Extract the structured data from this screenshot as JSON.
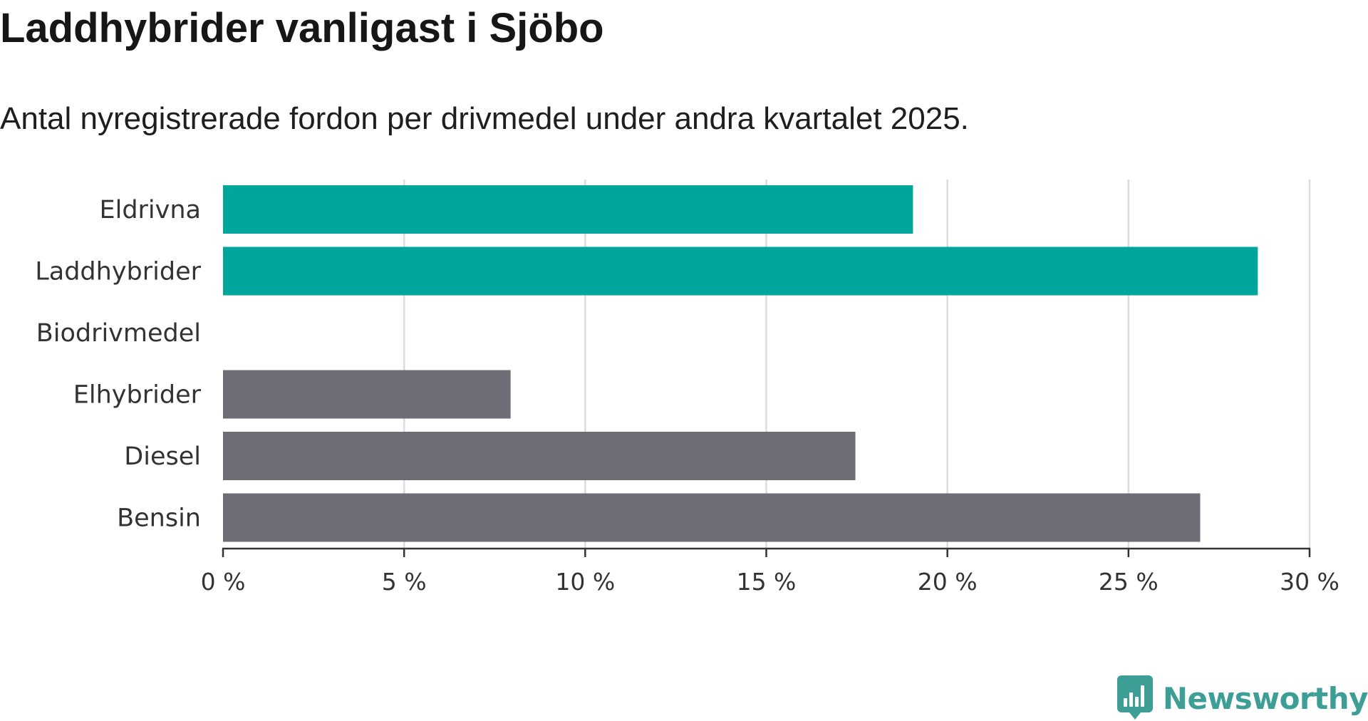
{
  "title": "Laddhybrider vanligast i Sjöbo",
  "subtitle": "Antal nyregistrerade fordon per drivmedel under andra kvartalet 2025.",
  "brand": {
    "name": "Newsworthy",
    "icon": "newsworthy-logo-icon"
  },
  "colors": {
    "highlight": "#00a59b",
    "base": "#6e6d75",
    "grid": "#dcdcdc",
    "axis": "#333333",
    "text": "#333333"
  },
  "chart_data": {
    "type": "bar",
    "orientation": "horizontal",
    "categories": [
      "Eldrivna",
      "Laddhybrider",
      "Biodrivmedel",
      "Elhybrider",
      "Diesel",
      "Bensin"
    ],
    "values": [
      19.05,
      28.57,
      0,
      7.94,
      17.46,
      26.98
    ],
    "highlighted": [
      true,
      true,
      false,
      false,
      false,
      false
    ],
    "xticks": [
      "0 %",
      "5 %",
      "10 %",
      "15 %",
      "20 %",
      "25 %",
      "30 %"
    ],
    "xlim": [
      0,
      30
    ],
    "grid": true,
    "xlabel": "",
    "ylabel": ""
  }
}
